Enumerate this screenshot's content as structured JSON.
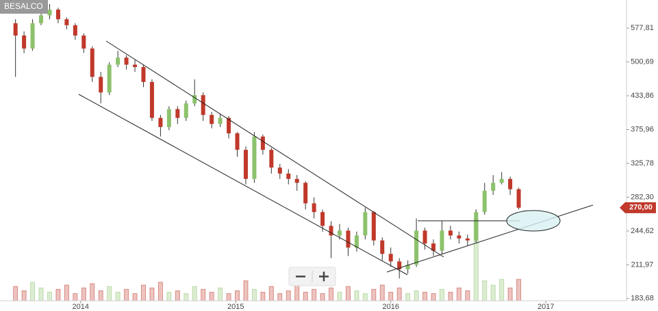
{
  "chart_data": {
    "type": "candlestick",
    "title": "BESALCO",
    "x": [
      2013.58,
      2013.635,
      2013.69,
      2013.745,
      2013.8,
      2013.855,
      2013.91,
      2013.965,
      2014.02,
      2014.075,
      2014.13,
      2014.185,
      2014.24,
      2014.295,
      2014.35,
      2014.405,
      2014.46,
      2014.515,
      2014.57,
      2014.625,
      2014.68,
      2014.735,
      2014.79,
      2014.845,
      2014.9,
      2014.955,
      2015.01,
      2015.065,
      2015.12,
      2015.175,
      2015.23,
      2015.285,
      2015.34,
      2015.395,
      2015.45,
      2015.505,
      2015.56,
      2015.615,
      2015.67,
      2015.725,
      2015.78,
      2015.835,
      2015.89,
      2015.945,
      2016.0,
      2016.055,
      2016.11,
      2016.165,
      2016.22,
      2016.275,
      2016.33,
      2016.385,
      2016.44,
      2016.495,
      2016.55,
      2016.605,
      2016.66,
      2016.715,
      2016.77,
      2016.825
    ],
    "open": [
      590,
      560,
      530,
      590,
      610,
      625,
      600,
      585,
      560,
      530,
      470,
      440,
      495,
      510,
      495,
      490,
      460,
      395,
      380,
      410,
      395,
      420,
      435,
      400,
      385,
      395,
      370,
      345,
      305,
      365,
      345,
      320,
      312,
      305,
      300,
      275,
      265,
      250,
      240,
      245,
      228,
      240,
      265,
      235,
      222,
      215,
      208,
      212,
      245,
      232,
      225,
      245,
      240,
      237,
      235,
      265,
      290,
      300,
      305,
      292
    ],
    "high": [
      600,
      570,
      600,
      650,
      640,
      630,
      605,
      590,
      565,
      535,
      480,
      500,
      525,
      515,
      505,
      495,
      465,
      400,
      415,
      415,
      425,
      465,
      440,
      405,
      402,
      398,
      372,
      350,
      372,
      368,
      348,
      325,
      318,
      310,
      302,
      282,
      268,
      255,
      252,
      248,
      244,
      270,
      266,
      238,
      228,
      218,
      216,
      258,
      248,
      236,
      255,
      250,
      244,
      241,
      268,
      300,
      310,
      314,
      308,
      294
    ],
    "low": [
      470,
      520,
      525,
      585,
      600,
      590,
      575,
      550,
      520,
      460,
      420,
      435,
      490,
      485,
      480,
      450,
      390,
      365,
      375,
      385,
      390,
      415,
      390,
      378,
      380,
      362,
      335,
      298,
      300,
      338,
      312,
      305,
      298,
      290,
      268,
      258,
      244,
      218,
      236,
      220,
      224,
      236,
      230,
      216,
      210,
      200,
      204,
      210,
      226,
      220,
      222,
      236,
      232,
      230,
      233,
      262,
      285,
      298,
      285,
      268
    ],
    "close": [
      560,
      530,
      590,
      610,
      625,
      600,
      585,
      560,
      530,
      470,
      440,
      495,
      510,
      495,
      490,
      460,
      395,
      380,
      410,
      395,
      420,
      435,
      400,
      385,
      395,
      370,
      345,
      305,
      365,
      345,
      320,
      312,
      305,
      300,
      275,
      265,
      250,
      240,
      245,
      228,
      240,
      265,
      235,
      222,
      215,
      208,
      212,
      245,
      232,
      225,
      245,
      240,
      237,
      235,
      265,
      290,
      300,
      305,
      292,
      270
    ],
    "volume": [
      20,
      14,
      26,
      18,
      12,
      16,
      22,
      10,
      18,
      24,
      14,
      20,
      12,
      16,
      10,
      22,
      18,
      26,
      12,
      14,
      10,
      20,
      16,
      12,
      18,
      10,
      14,
      28,
      16,
      12,
      20,
      10,
      14,
      24,
      12,
      16,
      10,
      18,
      12,
      20,
      14,
      10,
      16,
      22,
      12,
      18,
      10,
      14,
      12,
      10,
      16,
      12,
      18,
      14,
      115,
      28,
      22,
      30,
      18,
      30
    ],
    "last_label": "270,00",
    "up_color": "#8cc26c",
    "down_color": "#c0392b",
    "log_scale": true,
    "xlim": [
      2013.48,
      2017.52
    ],
    "xticks": [
      2014,
      2015,
      2016,
      2017
    ],
    "ylim": [
      182,
      651
    ],
    "yticks": [
      {
        "value": 183.68,
        "label": "183,68"
      },
      {
        "value": 211.97,
        "label": "211,97"
      },
      {
        "value": 244.62,
        "label": "244,62"
      },
      {
        "value": 282.3,
        "label": "282,30"
      },
      {
        "value": 325.78,
        "label": "325,78"
      },
      {
        "value": 375.96,
        "label": "375,96"
      },
      {
        "value": 433.86,
        "label": "433,86"
      },
      {
        "value": 500.69,
        "label": "500,69"
      },
      {
        "value": 577.81,
        "label": "577,81"
      }
    ]
  }
}
